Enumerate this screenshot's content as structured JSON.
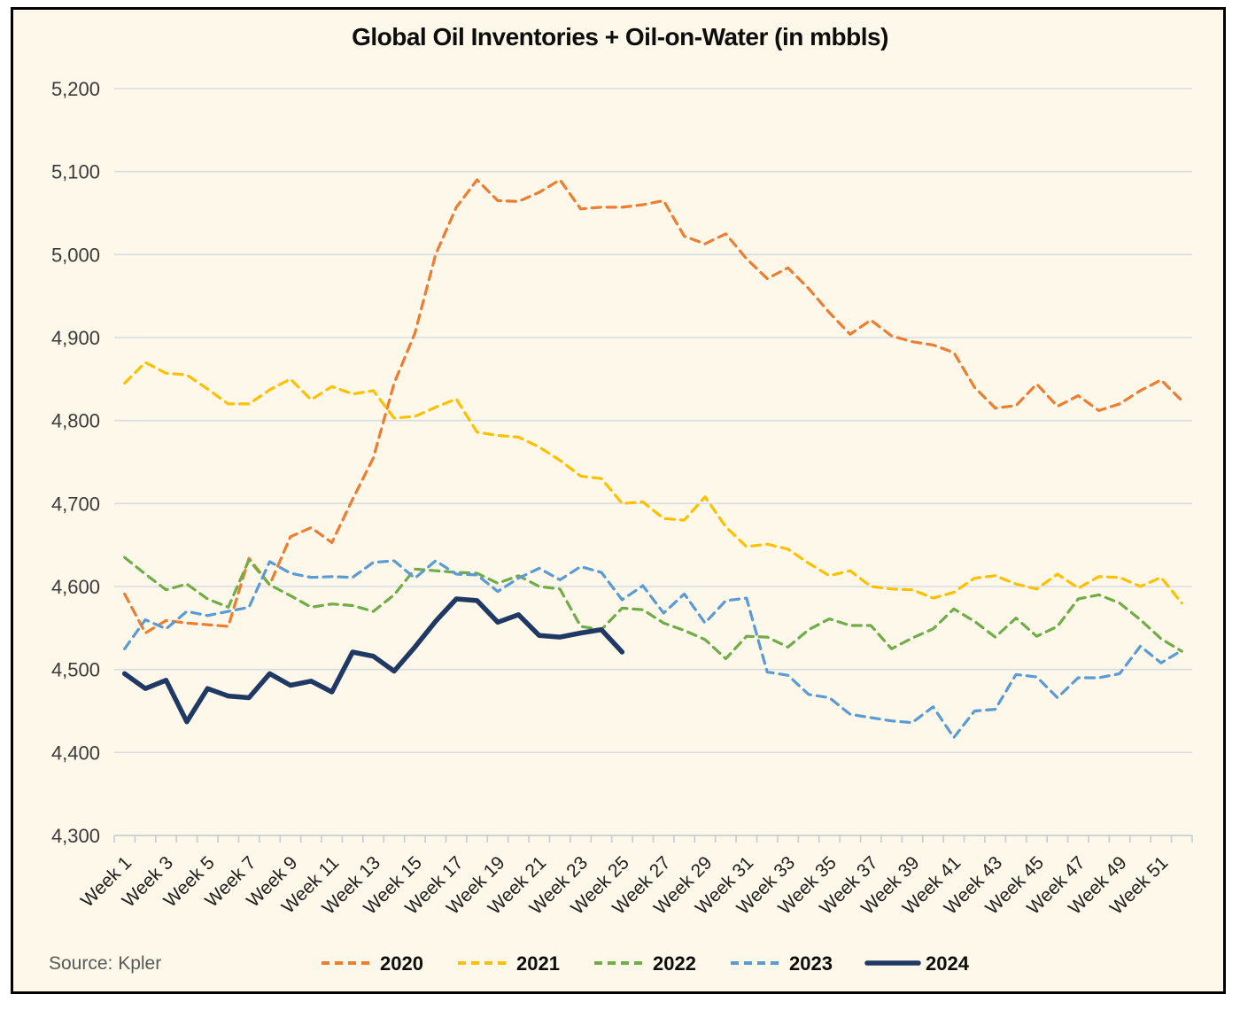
{
  "source": "Source: Kpler",
  "chart_data": {
    "type": "line",
    "title": "Global Oil Inventories + Oil-on-Water (in mbbls)",
    "background": "#FDF8E9",
    "grid_color": "#D8DCE5",
    "axis_color": "#C6CBD4",
    "weeks": 52,
    "ylim": [
      4300,
      5200
    ],
    "y_tick_step": 100,
    "y_tick_labels": [
      "4,300",
      "4,400",
      "4,500",
      "4,600",
      "4,700",
      "4,800",
      "4,900",
      "5,000",
      "5,100",
      "5,200"
    ],
    "x_tick_labels": [
      "Week 1",
      "Week 3",
      "Week 5",
      "Week 7",
      "Week 9",
      "Week 11",
      "Week 13",
      "Week 15",
      "Week 17",
      "Week 19",
      "Week 21",
      "Week 23",
      "Week 25",
      "Week 27",
      "Week 29",
      "Week 31",
      "Week 33",
      "Week 35",
      "Week 37",
      "Week 39",
      "Week 41",
      "Week 43",
      "Week 45",
      "Week 47",
      "Week 49",
      "Week 51"
    ],
    "grid": true,
    "legend_position": "bottom",
    "series": [
      {
        "name": "2020",
        "color": "#ED7D31",
        "style": "dashed",
        "values": [
          4591,
          4544,
          4559,
          4556,
          4554,
          4552,
          4634,
          4602,
          4660,
          4671,
          4653,
          4705,
          4755,
          4845,
          4905,
          5000,
          5057,
          5090,
          5065,
          5064,
          5075,
          5090,
          5055,
          5057,
          5057,
          5060,
          5065,
          5022,
          5013,
          5025,
          4995,
          4971,
          4984,
          4959,
          4930,
          4904,
          4921,
          4902,
          4895,
          4891,
          4882,
          4840,
          4815,
          4818,
          4844,
          4817,
          4830,
          4812,
          4820,
          4836,
          4849,
          4824
        ]
      },
      {
        "name": "2021",
        "color": "#FFC000",
        "style": "dashed",
        "values": [
          4845,
          4870,
          4857,
          4855,
          4838,
          4820,
          4820,
          4837,
          4850,
          4825,
          4841,
          4832,
          4836,
          4803,
          4805,
          4816,
          4826,
          4786,
          4782,
          4780,
          4768,
          4752,
          4733,
          4730,
          4700,
          4702,
          4682,
          4680,
          4708,
          4672,
          4648,
          4651,
          4645,
          4628,
          4613,
          4619,
          4600,
          4597,
          4596,
          4586,
          4593,
          4610,
          4613,
          4603,
          4597,
          4615,
          4598,
          4612,
          4611,
          4600,
          4611,
          4580
        ]
      },
      {
        "name": "2022",
        "color": "#70AD47",
        "style": "dashed",
        "values": [
          4635,
          4615,
          4596,
          4603,
          4585,
          4575,
          4632,
          4602,
          4589,
          4575,
          4579,
          4577,
          4570,
          4590,
          4621,
          4619,
          4617,
          4616,
          4604,
          4613,
          4600,
          4597,
          4552,
          4548,
          4574,
          4572,
          4556,
          4547,
          4536,
          4513,
          4540,
          4539,
          4527,
          4548,
          4561,
          4553,
          4553,
          4525,
          4538,
          4549,
          4573,
          4558,
          4539,
          4562,
          4540,
          4552,
          4585,
          4590,
          4580,
          4560,
          4537,
          4522
        ]
      },
      {
        "name": "2023",
        "color": "#5B9BD5",
        "style": "dashed",
        "values": [
          4525,
          4560,
          4549,
          4570,
          4565,
          4570,
          4575,
          4630,
          4616,
          4611,
          4612,
          4611,
          4629,
          4631,
          4610,
          4631,
          4615,
          4614,
          4594,
          4610,
          4622,
          4608,
          4624,
          4617,
          4584,
          4601,
          4568,
          4591,
          4556,
          4583,
          4586,
          4497,
          4493,
          4470,
          4466,
          4446,
          4442,
          4438,
          4436,
          4455,
          4418,
          4450,
          4452,
          4494,
          4491,
          4466,
          4490,
          4490,
          4495,
          4528,
          4508,
          4523
        ]
      },
      {
        "name": "2024",
        "color": "#1F3864",
        "style": "solid",
        "values": [
          4495,
          4477,
          4487,
          4437,
          4477,
          4468,
          4466,
          4495,
          4481,
          4486,
          4473,
          4521,
          4516,
          4498,
          4527,
          4558,
          4585,
          4583,
          4557,
          4566,
          4541,
          4539,
          4544,
          4548,
          4521
        ]
      }
    ]
  }
}
